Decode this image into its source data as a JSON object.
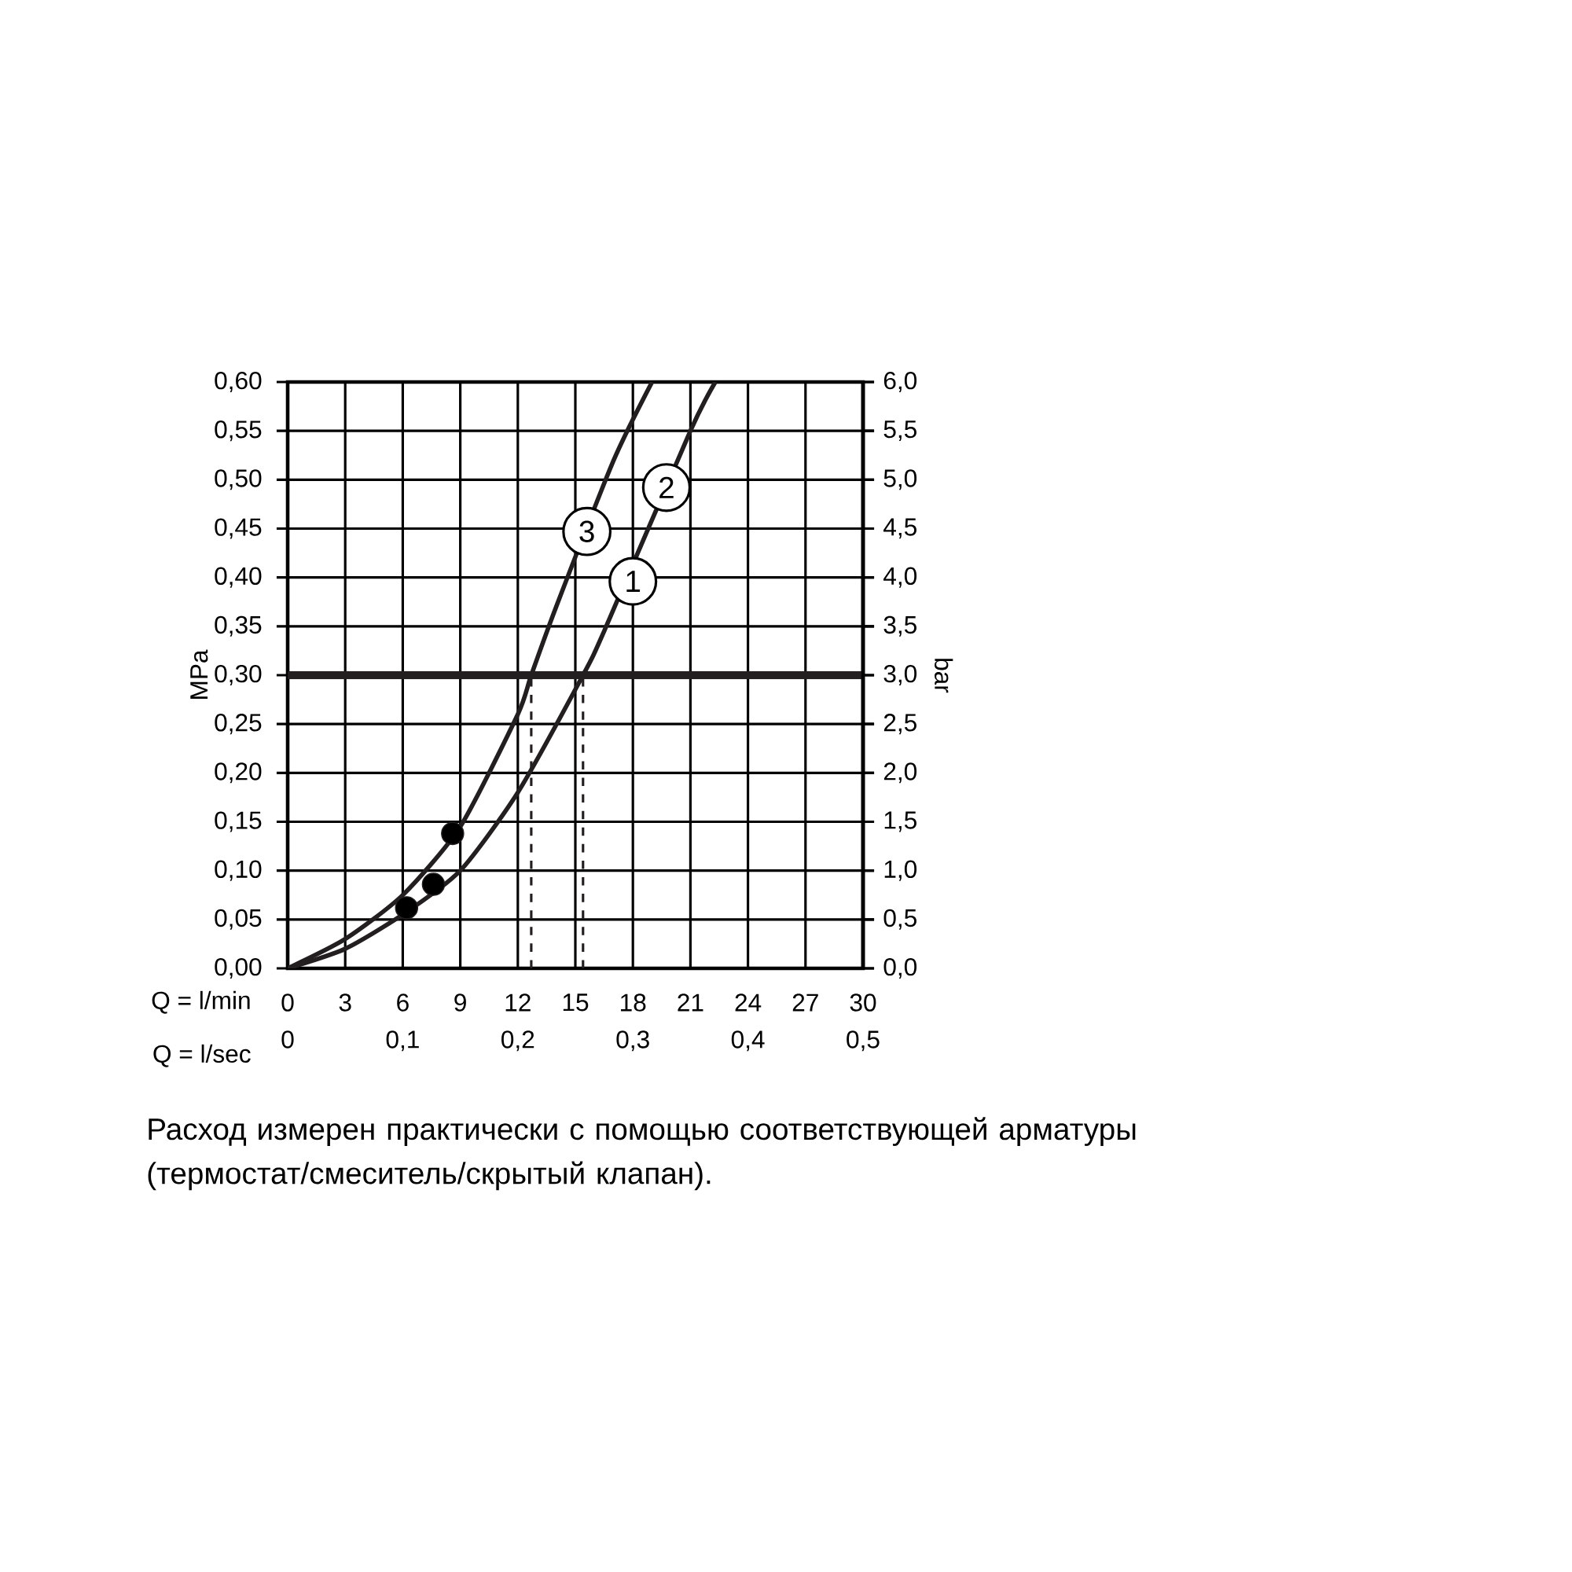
{
  "chart_data": {
    "type": "line",
    "xlabel": "Q = l/min",
    "x2label": "Q = l/sec",
    "ylabel": "MPa",
    "y2label": "bar",
    "xlim": [
      0,
      30
    ],
    "xticks": [
      0,
      3,
      6,
      9,
      12,
      15,
      18,
      21,
      24,
      27,
      30
    ],
    "x2lim": [
      0,
      0.5
    ],
    "x2ticks": [
      0,
      {
        "value": 0.1,
        "label": "0,1"
      },
      {
        "value": 0.2,
        "label": "0,2"
      },
      {
        "value": 0.3,
        "label": "0,3"
      },
      {
        "value": 0.4,
        "label": "0,4"
      },
      {
        "value": 0.5,
        "label": "0,5"
      }
    ],
    "ylim": [
      0,
      0.6
    ],
    "yticks": [
      {
        "value": 0,
        "label": "0,00"
      },
      {
        "value": 0.05,
        "label": "0,05"
      },
      {
        "value": 0.1,
        "label": "0,10"
      },
      {
        "value": 0.15,
        "label": "0,15"
      },
      {
        "value": 0.2,
        "label": "0,20"
      },
      {
        "value": 0.25,
        "label": "0,25"
      },
      {
        "value": 0.3,
        "label": "0,30"
      },
      {
        "value": 0.35,
        "label": "0,35"
      },
      {
        "value": 0.4,
        "label": "0,40"
      },
      {
        "value": 0.45,
        "label": "0,45"
      },
      {
        "value": 0.5,
        "label": "0,50"
      },
      {
        "value": 0.55,
        "label": "0,55"
      },
      {
        "value": 0.6,
        "label": "0,60"
      }
    ],
    "y2lim": [
      0,
      6
    ],
    "y2ticks": [
      {
        "value": 0,
        "label": "0,0"
      },
      {
        "value": 0.5,
        "label": "0,5"
      },
      {
        "value": 1,
        "label": "1,0"
      },
      {
        "value": 1.5,
        "label": "1,5"
      },
      {
        "value": 2,
        "label": "2,0"
      },
      {
        "value": 2.5,
        "label": "2,5"
      },
      {
        "value": 3,
        "label": "3,0"
      },
      {
        "value": 3.5,
        "label": "3,5"
      },
      {
        "value": 4,
        "label": "4,0"
      },
      {
        "value": 4.5,
        "label": "4,5"
      },
      {
        "value": 5,
        "label": "5,0"
      },
      {
        "value": 5.5,
        "label": "5,5"
      },
      {
        "value": 6,
        "label": "6,0"
      }
    ],
    "grid": true,
    "series": [
      {
        "color": "#231f20",
        "x": [
          0,
          3,
          6,
          9,
          12,
          12.7,
          14,
          17,
          19
        ],
        "values": [
          0,
          0.03,
          0.075,
          0.145,
          0.26,
          0.3,
          0.37,
          0.52,
          0.6
        ]
      },
      {
        "color": "#231f20",
        "x": [
          0,
          3,
          6,
          9,
          12,
          15.4,
          16.5,
          21,
          22.3
        ],
        "values": [
          0,
          0.02,
          0.055,
          0.1,
          0.18,
          0.3,
          0.345,
          0.55,
          0.6
        ]
      },
      {
        "type": "scatter",
        "color": "#231f20",
        "marker": "circle",
        "x": [
          6.2,
          7.6,
          8.6
        ],
        "values": [
          0.062,
          0.086,
          0.138
        ]
      }
    ],
    "ref_lines": [
      {
        "axis": "y",
        "value": 0.3
      },
      {
        "axis": "x",
        "value": 12.7,
        "line_style": "dashed"
      },
      {
        "axis": "x",
        "value": 15.4,
        "line_style": "dashed"
      }
    ],
    "annotations": [
      {
        "text": "1",
        "x": 18.0,
        "y": 0.396
      },
      {
        "text": "2",
        "x": 19.75,
        "y": 0.492
      },
      {
        "text": "3",
        "x": 15.6,
        "y": 0.447
      },
      "Расход измерен практически с помощью соответствующей арматуры (термостат/смеситель/скрытый клапан)."
    ]
  }
}
